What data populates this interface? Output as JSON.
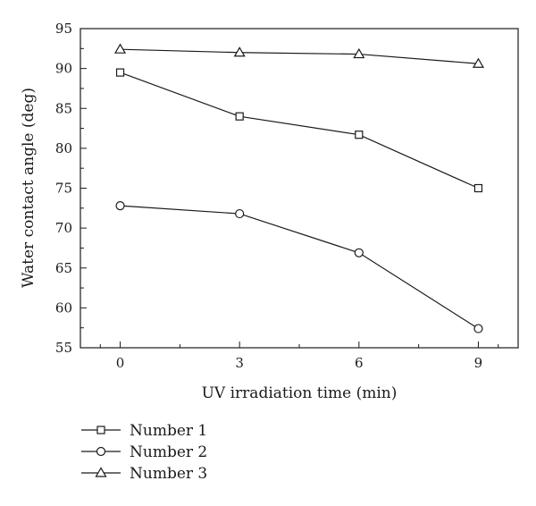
{
  "chart_data": {
    "type": "line",
    "xlabel": "UV irradiation time (min)",
    "ylabel": "Water contact angle (deg)",
    "x": [
      0,
      3,
      6,
      9
    ],
    "xlim": [
      -1,
      10
    ],
    "ylim": [
      55,
      95
    ],
    "xticks": [
      "0",
      "3",
      "6",
      "9"
    ],
    "yticks": [
      "55",
      "60",
      "65",
      "70",
      "75",
      "80",
      "85",
      "90",
      "95"
    ],
    "grid": false,
    "legend_position": "below the plot, left",
    "series": [
      {
        "name": "Number 1",
        "marker": "square",
        "values": [
          89.5,
          84.0,
          81.7,
          75.0
        ]
      },
      {
        "name": "Number 2",
        "marker": "circle",
        "values": [
          72.8,
          71.8,
          66.9,
          57.4
        ]
      },
      {
        "name": "Number 3",
        "marker": "triangle",
        "values": [
          92.4,
          92.0,
          91.8,
          90.6
        ]
      }
    ]
  }
}
